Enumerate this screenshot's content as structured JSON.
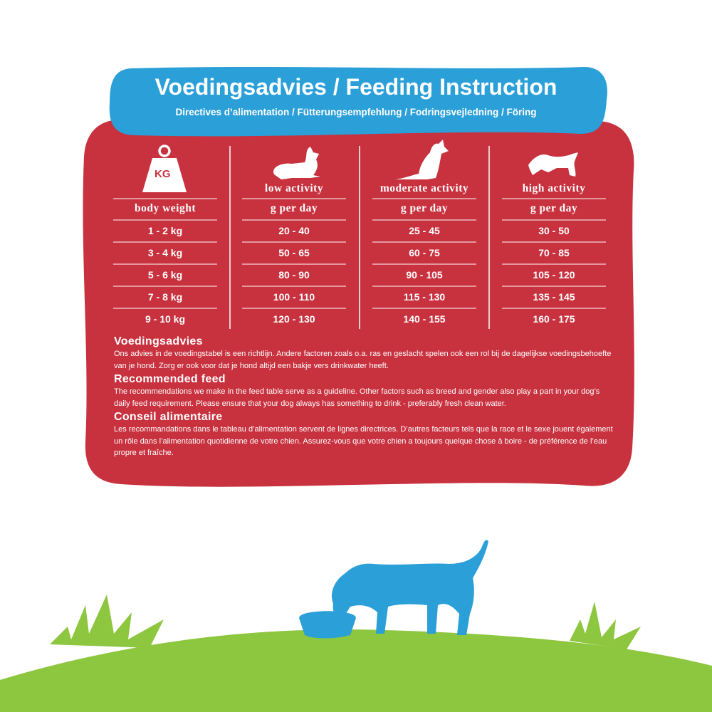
{
  "header": {
    "title": "Voedingsadvies / Feeding Instruction",
    "subtitle": "Directives d’alimentation / Fütterungsempfehlung / Fodringsvejledning / Föring"
  },
  "table": {
    "icon_label": "KG",
    "activities": [
      null,
      "low activity",
      "moderate activity",
      "high activity"
    ],
    "headers": [
      "body weight",
      "g per day",
      "g per day",
      "g per day"
    ],
    "rows": [
      [
        "1 - 2 kg",
        "20 - 40",
        "25 - 45",
        "30 - 50"
      ],
      [
        "3 - 4 kg",
        "50 - 65",
        "60 - 75",
        "70 - 85"
      ],
      [
        "5 - 6 kg",
        "80 - 90",
        "90 - 105",
        "105 - 120"
      ],
      [
        "7 - 8 kg",
        "100 - 110",
        "115 - 130",
        "135 - 145"
      ],
      [
        "9 - 10 kg",
        "120 - 130",
        "140 - 155",
        "160 - 175"
      ]
    ]
  },
  "notes": [
    {
      "title": "Voedingsadvies",
      "text": "Ons advies in de voedingstabel is een richtlijn. Andere factoren zoals o.a. ras en geslacht spelen ook een rol bij de dagelijkse voedingsbehoefte van je hond. Zorg er ook voor dat je hond altijd een bakje vers drinkwater heeft."
    },
    {
      "title": "Recommended feed",
      "text": "The recommendations we make in the feed table serve as a guideline. Other factors such as breed and gender also play a part in your dog’s daily feed requirement. Please ensure that your dog always has something to drink - preferably fresh clean water."
    },
    {
      "title": "Conseil alimentaire",
      "text": "Les recommandations dans le tableau d’alimentation servent de lignes directrices. D’autres facteurs tels que la race et le sexe jouent également un rôle dans l’alimentation quotidienne de votre chien. Assurez-vous que votre chien a toujours quelque chose à boire - de préférence de l’eau propre et fraîche."
    }
  ]
}
